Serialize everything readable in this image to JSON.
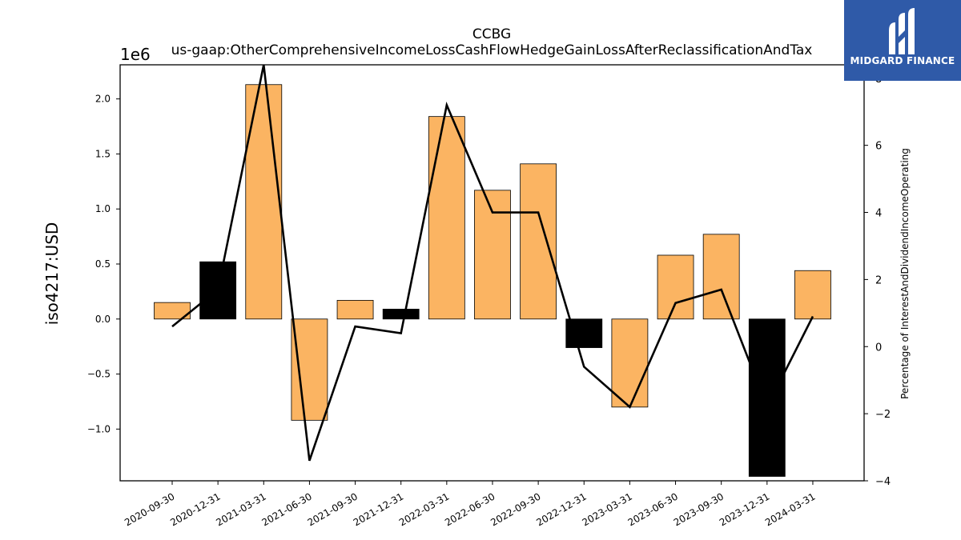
{
  "logo": {
    "text": "MIDGARD FINANCE",
    "background": "#2f5aa8"
  },
  "chart_data": {
    "type": "bar",
    "title": "CCBG",
    "subtitle": "us-gaap:OtherComprehensiveIncomeLossCashFlowHedgeGainLossAfterReclassificationAndTax",
    "ylabel": "iso4217:USD",
    "y2label": "Percentage of InterestAndDividendIncomeOperating",
    "y_offset_label": "1e6",
    "categories": [
      "2020-09-30",
      "2020-12-31",
      "2021-03-31",
      "2021-06-30",
      "2021-09-30",
      "2021-12-31",
      "2022-03-31",
      "2022-06-30",
      "2022-09-30",
      "2022-12-31",
      "2023-03-31",
      "2023-06-30",
      "2023-09-30",
      "2023-12-31",
      "2024-03-31"
    ],
    "values": [
      0.15,
      0.52,
      2.13,
      -0.92,
      0.17,
      0.09,
      1.84,
      1.17,
      1.41,
      -0.26,
      -0.8,
      0.58,
      0.77,
      -1.43,
      0.44
    ],
    "bar_colors": [
      "#fbb462",
      "#000000",
      "#fbb462",
      "#fbb462",
      "#fbb462",
      "#000000",
      "#fbb462",
      "#fbb462",
      "#fbb462",
      "#000000",
      "#fbb462",
      "#fbb462",
      "#fbb462",
      "#000000",
      "#fbb462"
    ],
    "series": [
      {
        "axis": "right",
        "type": "line",
        "color": "#000000",
        "values": [
          0.6,
          1.7,
          8.4,
          -3.4,
          0.6,
          0.4,
          7.2,
          4.0,
          4.0,
          -0.6,
          -1.8,
          1.3,
          1.7,
          -1.8,
          0.9
        ]
      }
    ],
    "ylim": [
      -1.47,
      2.31
    ],
    "y2lim": [
      -4,
      8.4
    ],
    "yticks": [
      -1.0,
      -0.5,
      0.0,
      0.5,
      1.0,
      1.5,
      2.0
    ],
    "ytick_labels": [
      "−1.0",
      "−0.5",
      "0.0",
      "0.5",
      "1.0",
      "1.5",
      "2.0"
    ],
    "y2ticks": [
      -4,
      -2,
      0,
      2,
      4,
      6,
      8
    ],
    "y2tick_labels": [
      "−4",
      "−2",
      "0",
      "2",
      "4",
      "6",
      "8"
    ],
    "grid": false
  }
}
